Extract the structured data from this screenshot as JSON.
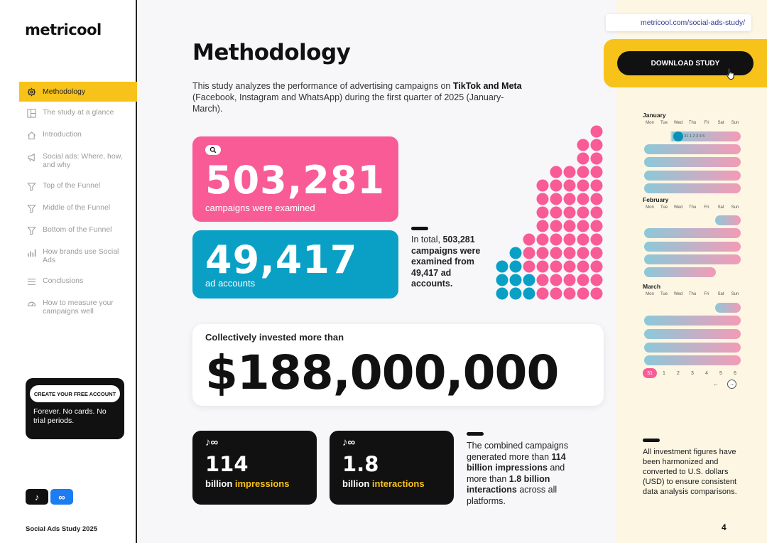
{
  "brand": {
    "logo": "metricool",
    "footer": "Social Ads Study 2025"
  },
  "sidebar": {
    "items": [
      {
        "label": "Methodology",
        "icon": "gear-icon",
        "active": true
      },
      {
        "label": "The study at a glance",
        "icon": "layout-icon"
      },
      {
        "label": "Introduction",
        "icon": "home-icon"
      },
      {
        "label": "Social ads: Where, how, and why",
        "icon": "megaphone-icon"
      },
      {
        "label": "Top of the Funnel",
        "icon": "funnel-icon"
      },
      {
        "label": "Middle of the Funnel",
        "icon": "funnel-icon"
      },
      {
        "label": "Bottom of the Funnel",
        "icon": "funnel-icon"
      },
      {
        "label": "How brands use Social Ads",
        "icon": "bar-chart-icon"
      },
      {
        "label": "Conclusions",
        "icon": "list-icon"
      },
      {
        "label": "How to measure your campaigns well",
        "icon": "gauge-icon"
      }
    ],
    "promo": {
      "button": "CREATE YOUR FREE ACCOUNT",
      "text": "Forever. No cards. No trial periods."
    },
    "platforms": {
      "tiktok": "♪",
      "meta": "∞"
    }
  },
  "header": {
    "url": "metricool.com/social-ads-study/",
    "download": "DOWNLOAD STUDY"
  },
  "main": {
    "title": "Methodology",
    "intro": {
      "p1": "This study analyzes the performance of advertising campaigns on ",
      "b1": "TikTok and Meta",
      "p2": " (Facebook, Instagram and WhatsApp) during the first quarter of 2025 (January-March)."
    },
    "campaigns": {
      "value": "503,281",
      "label": "campaigns were examined"
    },
    "accounts": {
      "value": "49,417",
      "label": "ad accounts"
    },
    "summary1": {
      "p1": "In total, ",
      "b1": "503,281 campaigns were examined from 49,417 ad accounts."
    },
    "invest": {
      "label": "Collectively invested more than",
      "value": "$188,000,000"
    },
    "impressions": {
      "icons": "♪∞",
      "value": "114",
      "pre": "billion ",
      "hl": "impressions"
    },
    "interactions": {
      "icons": "♪∞",
      "value": "1.8",
      "pre": "billion ",
      "hl": "interactions"
    },
    "summary2": {
      "p1": "The combined campaigns generated more than ",
      "b1": "114 billion impressions",
      "p2": " and more than ",
      "b2": "1.8 billion interactions",
      "p3": " across all platforms."
    }
  },
  "calendar": {
    "days": [
      "Mon",
      "Tue",
      "Wed",
      "Thu",
      "Fri",
      "Sat",
      "Sun"
    ],
    "months": [
      "January",
      "February",
      "March"
    ],
    "jan_first": "30 31 1 2 3 4 5",
    "march_tail": [
      "31",
      "1",
      "2",
      "3",
      "4",
      "5",
      "6"
    ],
    "nav_prev": "←",
    "nav_next": "→"
  },
  "note": "All investment figures have been harmonized and converted to U.S. dollars (USD) to ensure consistent data analysis comparisons.",
  "page_number": "4",
  "colors": {
    "pink": "#f95b97",
    "blue": "#0aa0c5",
    "yellow": "#f7c21a",
    "dark": "#111111"
  }
}
